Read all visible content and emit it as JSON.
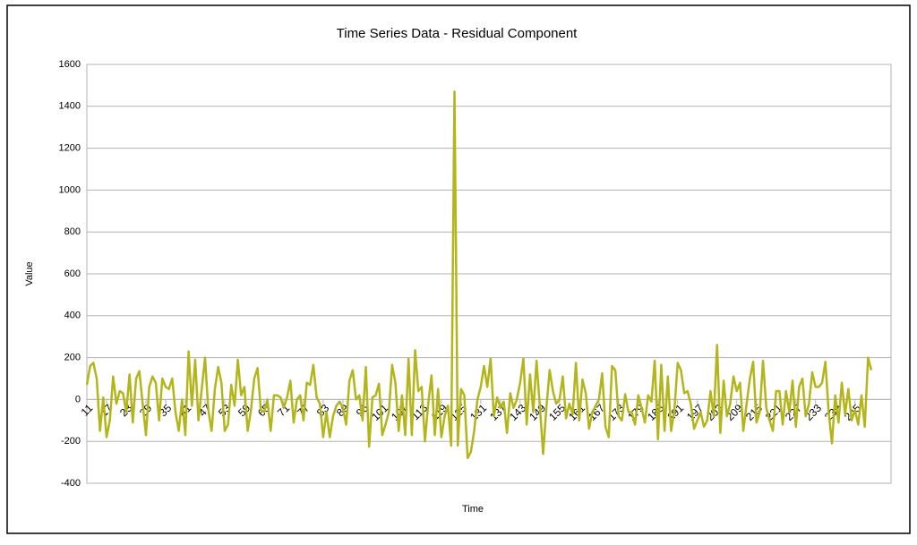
{
  "chart_data": {
    "type": "line",
    "title": "Time Series Data - Residual Component",
    "xlabel": "Time",
    "ylabel": "Value",
    "color": "#b3b51a",
    "grid": true,
    "x": [
      11,
      12,
      13,
      14,
      15,
      16,
      17,
      18,
      19,
      20,
      21,
      22,
      23,
      24,
      25,
      26,
      27,
      28,
      29,
      30,
      31,
      32,
      33,
      34,
      35,
      36,
      37,
      38,
      39,
      40,
      41,
      42,
      43,
      44,
      45,
      46,
      47,
      48,
      49,
      50,
      51,
      52,
      53,
      54,
      55,
      56,
      57,
      58,
      59,
      60,
      61,
      62,
      63,
      64,
      65,
      66,
      67,
      68,
      69,
      70,
      71,
      72,
      73,
      74,
      75,
      76,
      77,
      78,
      79,
      80,
      81,
      82,
      83,
      84,
      85,
      86,
      87,
      88,
      89,
      90,
      91,
      92,
      93,
      94,
      95,
      96,
      97,
      98,
      99,
      100,
      101,
      102,
      103,
      104,
      105,
      106,
      107,
      108,
      109,
      110,
      111,
      112,
      113,
      114,
      115,
      116,
      117,
      118,
      119,
      120,
      121,
      122,
      123,
      124,
      125,
      126,
      127,
      128,
      129,
      130,
      131,
      132,
      133,
      134,
      135,
      136,
      137,
      138,
      139,
      140,
      141,
      142,
      143,
      144,
      145,
      146,
      147,
      148,
      149,
      150,
      151,
      152,
      153,
      154,
      155,
      156,
      157,
      158,
      159,
      160,
      161,
      162,
      163,
      164,
      165,
      166,
      167,
      168,
      169,
      170,
      171,
      172,
      173,
      174,
      175,
      176,
      177,
      178,
      179,
      180,
      181,
      182,
      183,
      184,
      185,
      186,
      187,
      188,
      189,
      190,
      191,
      192,
      193,
      194,
      195,
      196,
      197,
      198,
      199,
      200,
      201,
      202,
      203,
      204,
      205,
      206,
      207,
      208,
      209,
      210,
      211,
      212,
      213,
      214,
      215,
      216,
      217,
      218,
      219,
      220,
      221,
      222,
      223,
      224,
      225,
      226,
      227,
      228,
      229,
      230,
      231,
      232,
      233,
      234,
      235,
      236,
      237,
      238,
      239,
      240,
      241,
      242,
      243,
      244,
      245,
      246,
      247,
      248,
      249,
      250
    ],
    "values": [
      70,
      160,
      175,
      100,
      -150,
      10,
      -180,
      -100,
      110,
      -20,
      40,
      30,
      -60,
      120,
      -110,
      100,
      135,
      -20,
      -170,
      60,
      110,
      80,
      -100,
      100,
      60,
      50,
      100,
      -60,
      -150,
      0,
      -170,
      230,
      -30,
      190,
      -100,
      50,
      200,
      -50,
      -150,
      50,
      155,
      80,
      -150,
      -120,
      70,
      -30,
      190,
      20,
      60,
      -150,
      -50,
      100,
      150,
      -50,
      -60,
      0,
      -150,
      20,
      20,
      10,
      -40,
      10,
      90,
      -110,
      0,
      20,
      -100,
      80,
      70,
      165,
      10,
      -20,
      -180,
      -60,
      -180,
      -80,
      -30,
      -10,
      -40,
      -120,
      90,
      140,
      0,
      20,
      -100,
      155,
      -225,
      10,
      20,
      75,
      -170,
      -120,
      -60,
      165,
      80,
      -150,
      20,
      -170,
      195,
      -170,
      235,
      40,
      60,
      -200,
      -20,
      115,
      -170,
      50,
      -180,
      -80,
      -30,
      -220,
      1470,
      -220,
      50,
      20,
      -280,
      -250,
      -150,
      0,
      60,
      160,
      60,
      195,
      -80,
      10,
      -40,
      -10,
      -160,
      30,
      -40,
      0,
      80,
      195,
      -120,
      120,
      -60,
      185,
      -30,
      -260,
      -40,
      140,
      40,
      -20,
      0,
      110,
      -90,
      -20,
      -70,
      175,
      -100,
      95,
      30,
      -140,
      -60,
      -30,
      0,
      125,
      -130,
      -180,
      160,
      140,
      -80,
      -100,
      25,
      -60,
      -60,
      -120,
      20,
      -40,
      -110,
      20,
      -10,
      185,
      -190,
      165,
      -150,
      110,
      -150,
      -50,
      175,
      140,
      30,
      40,
      -20,
      -140,
      -100,
      -60,
      -130,
      -100,
      40,
      -80,
      260,
      -160,
      90,
      -80,
      -20,
      110,
      40,
      80,
      -150,
      -20,
      100,
      180,
      -110,
      -60,
      185,
      -40,
      -100,
      -150,
      40,
      40,
      -120,
      40,
      -60,
      90,
      -130,
      60,
      100,
      -80,
      -20,
      130,
      60,
      60,
      80,
      180,
      -60,
      -210,
      20,
      -110,
      80,
      -70,
      50,
      -100,
      -50,
      -120,
      20,
      -130,
      200,
      140
    ],
    "xlim": [
      11,
      256
    ],
    "xticks": [
      11,
      17,
      23,
      29,
      35,
      41,
      47,
      53,
      59,
      65,
      71,
      77,
      83,
      89,
      95,
      101,
      107,
      113,
      119,
      125,
      131,
      137,
      143,
      149,
      155,
      161,
      167,
      173,
      179,
      185,
      191,
      197,
      203,
      209,
      215,
      221,
      227,
      233,
      239,
      245
    ],
    "ylim": [
      -400,
      1600
    ],
    "yticks": [
      -400,
      -200,
      0,
      200,
      400,
      600,
      800,
      1000,
      1200,
      1400,
      1600
    ]
  }
}
